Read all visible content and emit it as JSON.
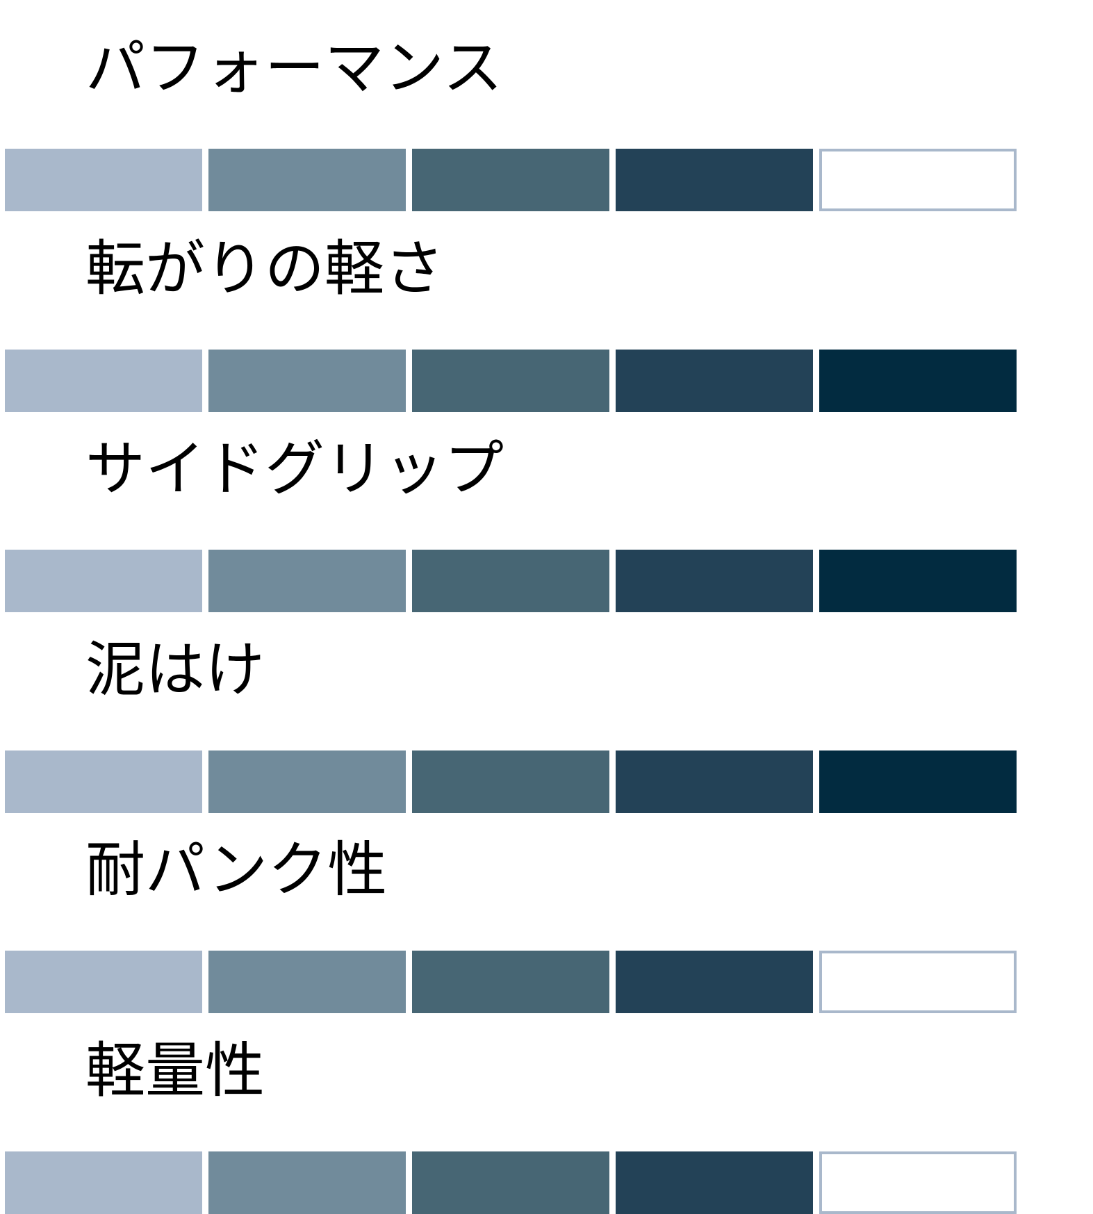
{
  "max_rating": 5,
  "segment_colors": [
    "#a9b8cb",
    "#718b9b",
    "#476674",
    "#234257",
    "#022b40"
  ],
  "empty_color": "#ffffff",
  "empty_border": "#a9b8cb",
  "items": [
    {
      "label": "パフォーマンス",
      "rating": 4
    },
    {
      "label": "転がりの軽さ",
      "rating": 5
    },
    {
      "label": "サイドグリップ",
      "rating": 5
    },
    {
      "label": "泥はけ",
      "rating": 5
    },
    {
      "label": "耐パンク性",
      "rating": 4
    },
    {
      "label": "軽量性",
      "rating": 4
    }
  ]
}
